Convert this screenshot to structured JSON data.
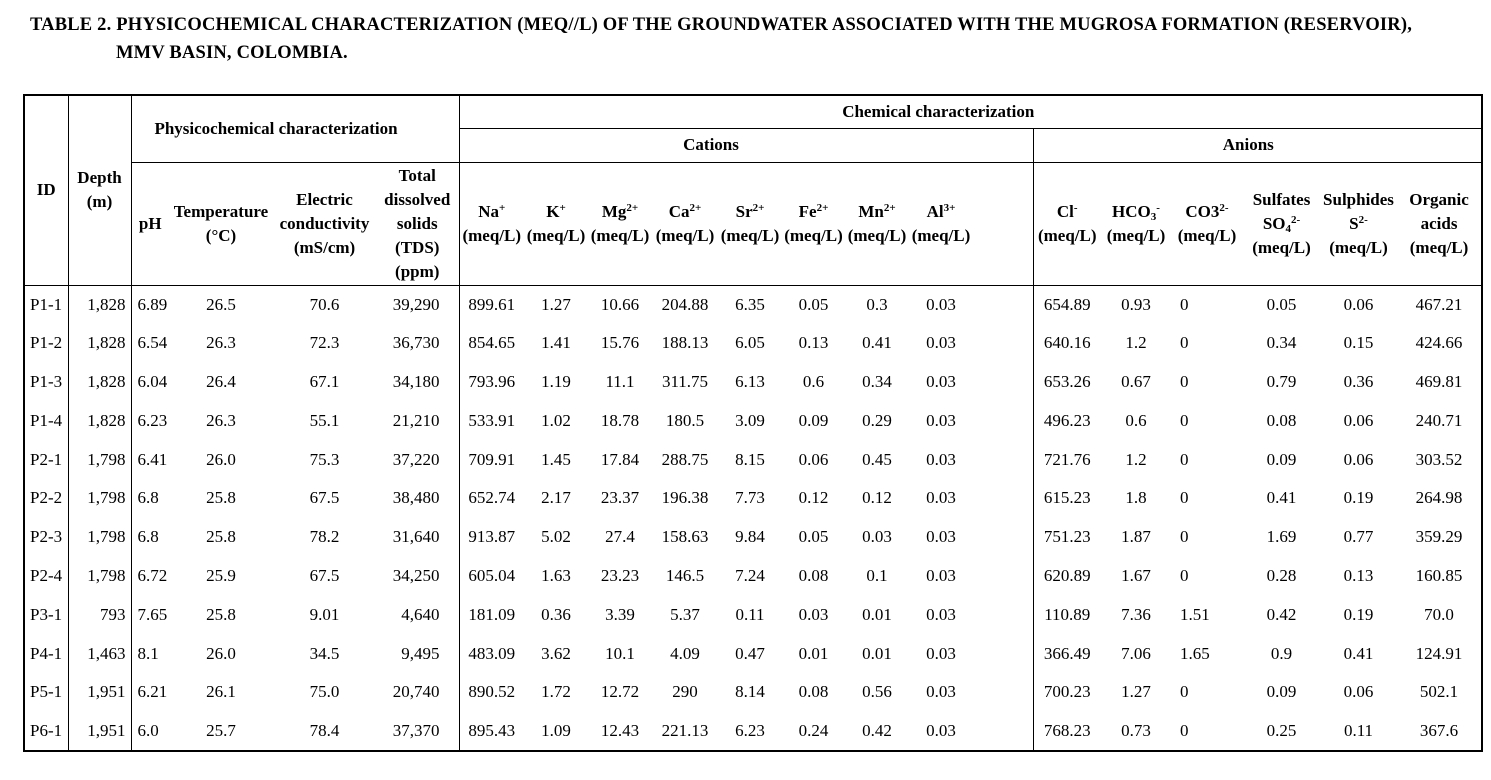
{
  "title": {
    "line1": "TABLE 2. PHYSICOCHEMICAL CHARACTERIZATION (MEQ//L) OF THE GROUNDWATER ASSOCIATED WITH THE MUGROSA FORMATION (RESERVOIR),",
    "line2": "MMV BASIN, COLOMBIA."
  },
  "header": {
    "id": "ID",
    "depth": "Depth|(m)",
    "phys_group": "Physicochemical characterization",
    "chem_group": "Chemical characterization",
    "cations_group": "Cations",
    "anions_group": "Anions",
    "phys_cols": [
      "pH",
      "Temperature|(°C)",
      "Electric|conductivity|(mS/cm)",
      "Total|dissolved|solids|(TDS)|(ppm)"
    ],
    "cation_cols": [
      "Na^+^|(meq/L)",
      "K^+^|(meq/L)",
      "Mg^2+^|(meq/L)",
      "Ca^2+^|(meq/L)",
      "Sr^2+^|(meq/L)",
      "Fe^2+^|(meq/L)",
      "Mn^2+^|(meq/L)",
      "Al^3+^|(meq/L)"
    ],
    "anion_cols": [
      "Cl^-^|(meq/L)",
      "HCO_3_^-^|(meq/L)",
      "CO3^2-^|(meq/L)",
      "Sulfates|SO_4_^2-^|(meq/L)",
      "Sulphides|S^2-^|(meq/L)",
      "Organic|acids|(meq/L)"
    ]
  },
  "column_keys": {
    "phys": [
      "ph",
      "temperature",
      "electric-conductivity",
      "tds"
    ],
    "cations": [
      "na",
      "k",
      "mg",
      "ca",
      "sr",
      "fe",
      "mn",
      "al"
    ],
    "anions": [
      "cl",
      "hco3",
      "co3",
      "sulfates-so4",
      "sulphides-s",
      "organic-acids"
    ]
  },
  "rows": [
    {
      "id": "P1-1",
      "depth": "1,828",
      "phys": [
        "6.89",
        "26.5",
        "70.6",
        "39,290"
      ],
      "cations": [
        "899.61",
        "1.27",
        "10.66",
        "204.88",
        "6.35",
        "0.05",
        "0.3",
        "0.03"
      ],
      "anions": [
        "654.89",
        "0.93",
        "0",
        "0.05",
        "0.06",
        "467.21"
      ]
    },
    {
      "id": "P1-2",
      "depth": "1,828",
      "phys": [
        "6.54",
        "26.3",
        "72.3",
        "36,730"
      ],
      "cations": [
        "854.65",
        "1.41",
        "15.76",
        "188.13",
        "6.05",
        "0.13",
        "0.41",
        "0.03"
      ],
      "anions": [
        "640.16",
        "1.2",
        "0",
        "0.34",
        "0.15",
        "424.66"
      ]
    },
    {
      "id": "P1-3",
      "depth": "1,828",
      "phys": [
        "6.04",
        "26.4",
        "67.1",
        "34,180"
      ],
      "cations": [
        "793.96",
        "1.19",
        "11.1",
        "311.75",
        "6.13",
        "0.6",
        "0.34",
        "0.03"
      ],
      "anions": [
        "653.26",
        "0.67",
        "0",
        "0.79",
        "0.36",
        "469.81"
      ]
    },
    {
      "id": "P1-4",
      "depth": "1,828",
      "phys": [
        "6.23",
        "26.3",
        "55.1",
        "21,210"
      ],
      "cations": [
        "533.91",
        "1.02",
        "18.78",
        "180.5",
        "3.09",
        "0.09",
        "0.29",
        "0.03"
      ],
      "anions": [
        "496.23",
        "0.6",
        "0",
        "0.08",
        "0.06",
        "240.71"
      ]
    },
    {
      "id": "P2-1",
      "depth": "1,798",
      "phys": [
        "6.41",
        "26.0",
        "75.3",
        "37,220"
      ],
      "cations": [
        "709.91",
        "1.45",
        "17.84",
        "288.75",
        "8.15",
        "0.06",
        "0.45",
        "0.03"
      ],
      "anions": [
        "721.76",
        "1.2",
        "0",
        "0.09",
        "0.06",
        "303.52"
      ]
    },
    {
      "id": "P2-2",
      "depth": "1,798",
      "phys": [
        "6.8",
        "25.8",
        "67.5",
        "38,480"
      ],
      "cations": [
        "652.74",
        "2.17",
        "23.37",
        "196.38",
        "7.73",
        "0.12",
        "0.12",
        "0.03"
      ],
      "anions": [
        "615.23",
        "1.8",
        "0",
        "0.41",
        "0.19",
        "264.98"
      ]
    },
    {
      "id": "P2-3",
      "depth": "1,798",
      "phys": [
        "6.8",
        "25.8",
        "78.2",
        "31,640"
      ],
      "cations": [
        "913.87",
        "5.02",
        "27.4",
        "158.63",
        "9.84",
        "0.05",
        "0.03",
        "0.03"
      ],
      "anions": [
        "751.23",
        "1.87",
        "0",
        "1.69",
        "0.77",
        "359.29"
      ]
    },
    {
      "id": "P2-4",
      "depth": "1,798",
      "phys": [
        "6.72",
        "25.9",
        "67.5",
        "34,250"
      ],
      "cations": [
        "605.04",
        "1.63",
        "23.23",
        "146.5",
        "7.24",
        "0.08",
        "0.1",
        "0.03"
      ],
      "anions": [
        "620.89",
        "1.67",
        "0",
        "0.28",
        "0.13",
        "160.85"
      ]
    },
    {
      "id": "P3-1",
      "depth": "793",
      "phys": [
        "7.65",
        "25.8",
        "9.01",
        "4,640"
      ],
      "cations": [
        "181.09",
        "0.36",
        "3.39",
        "5.37",
        "0.11",
        "0.03",
        "0.01",
        "0.03"
      ],
      "anions": [
        "110.89",
        "7.36",
        "1.51",
        "0.42",
        "0.19",
        "70.0"
      ]
    },
    {
      "id": "P4-1",
      "depth": "1,463",
      "phys": [
        "8.1",
        "26.0",
        "34.5",
        "9,495"
      ],
      "cations": [
        "483.09",
        "3.62",
        "10.1",
        "4.09",
        "0.47",
        "0.01",
        "0.01",
        "0.03"
      ],
      "anions": [
        "366.49",
        "7.06",
        "1.65",
        "0.9",
        "0.41",
        "124.91"
      ]
    },
    {
      "id": "P5-1",
      "depth": "1,951",
      "phys": [
        "6.21",
        "26.1",
        "75.0",
        "20,740"
      ],
      "cations": [
        "890.52",
        "1.72",
        "12.72",
        "290",
        "8.14",
        "0.08",
        "0.56",
        "0.03"
      ],
      "anions": [
        "700.23",
        "1.27",
        "0",
        "0.09",
        "0.06",
        "502.1"
      ]
    },
    {
      "id": "P6-1",
      "depth": "1,951",
      "phys": [
        "6.0",
        "25.7",
        "78.4",
        "37,370"
      ],
      "cations": [
        "895.43",
        "1.09",
        "12.43",
        "221.13",
        "6.23",
        "0.24",
        "0.42",
        "0.03"
      ],
      "anions": [
        "768.23",
        "0.73",
        "0",
        "0.25",
        "0.11",
        "367.6"
      ]
    }
  ]
}
